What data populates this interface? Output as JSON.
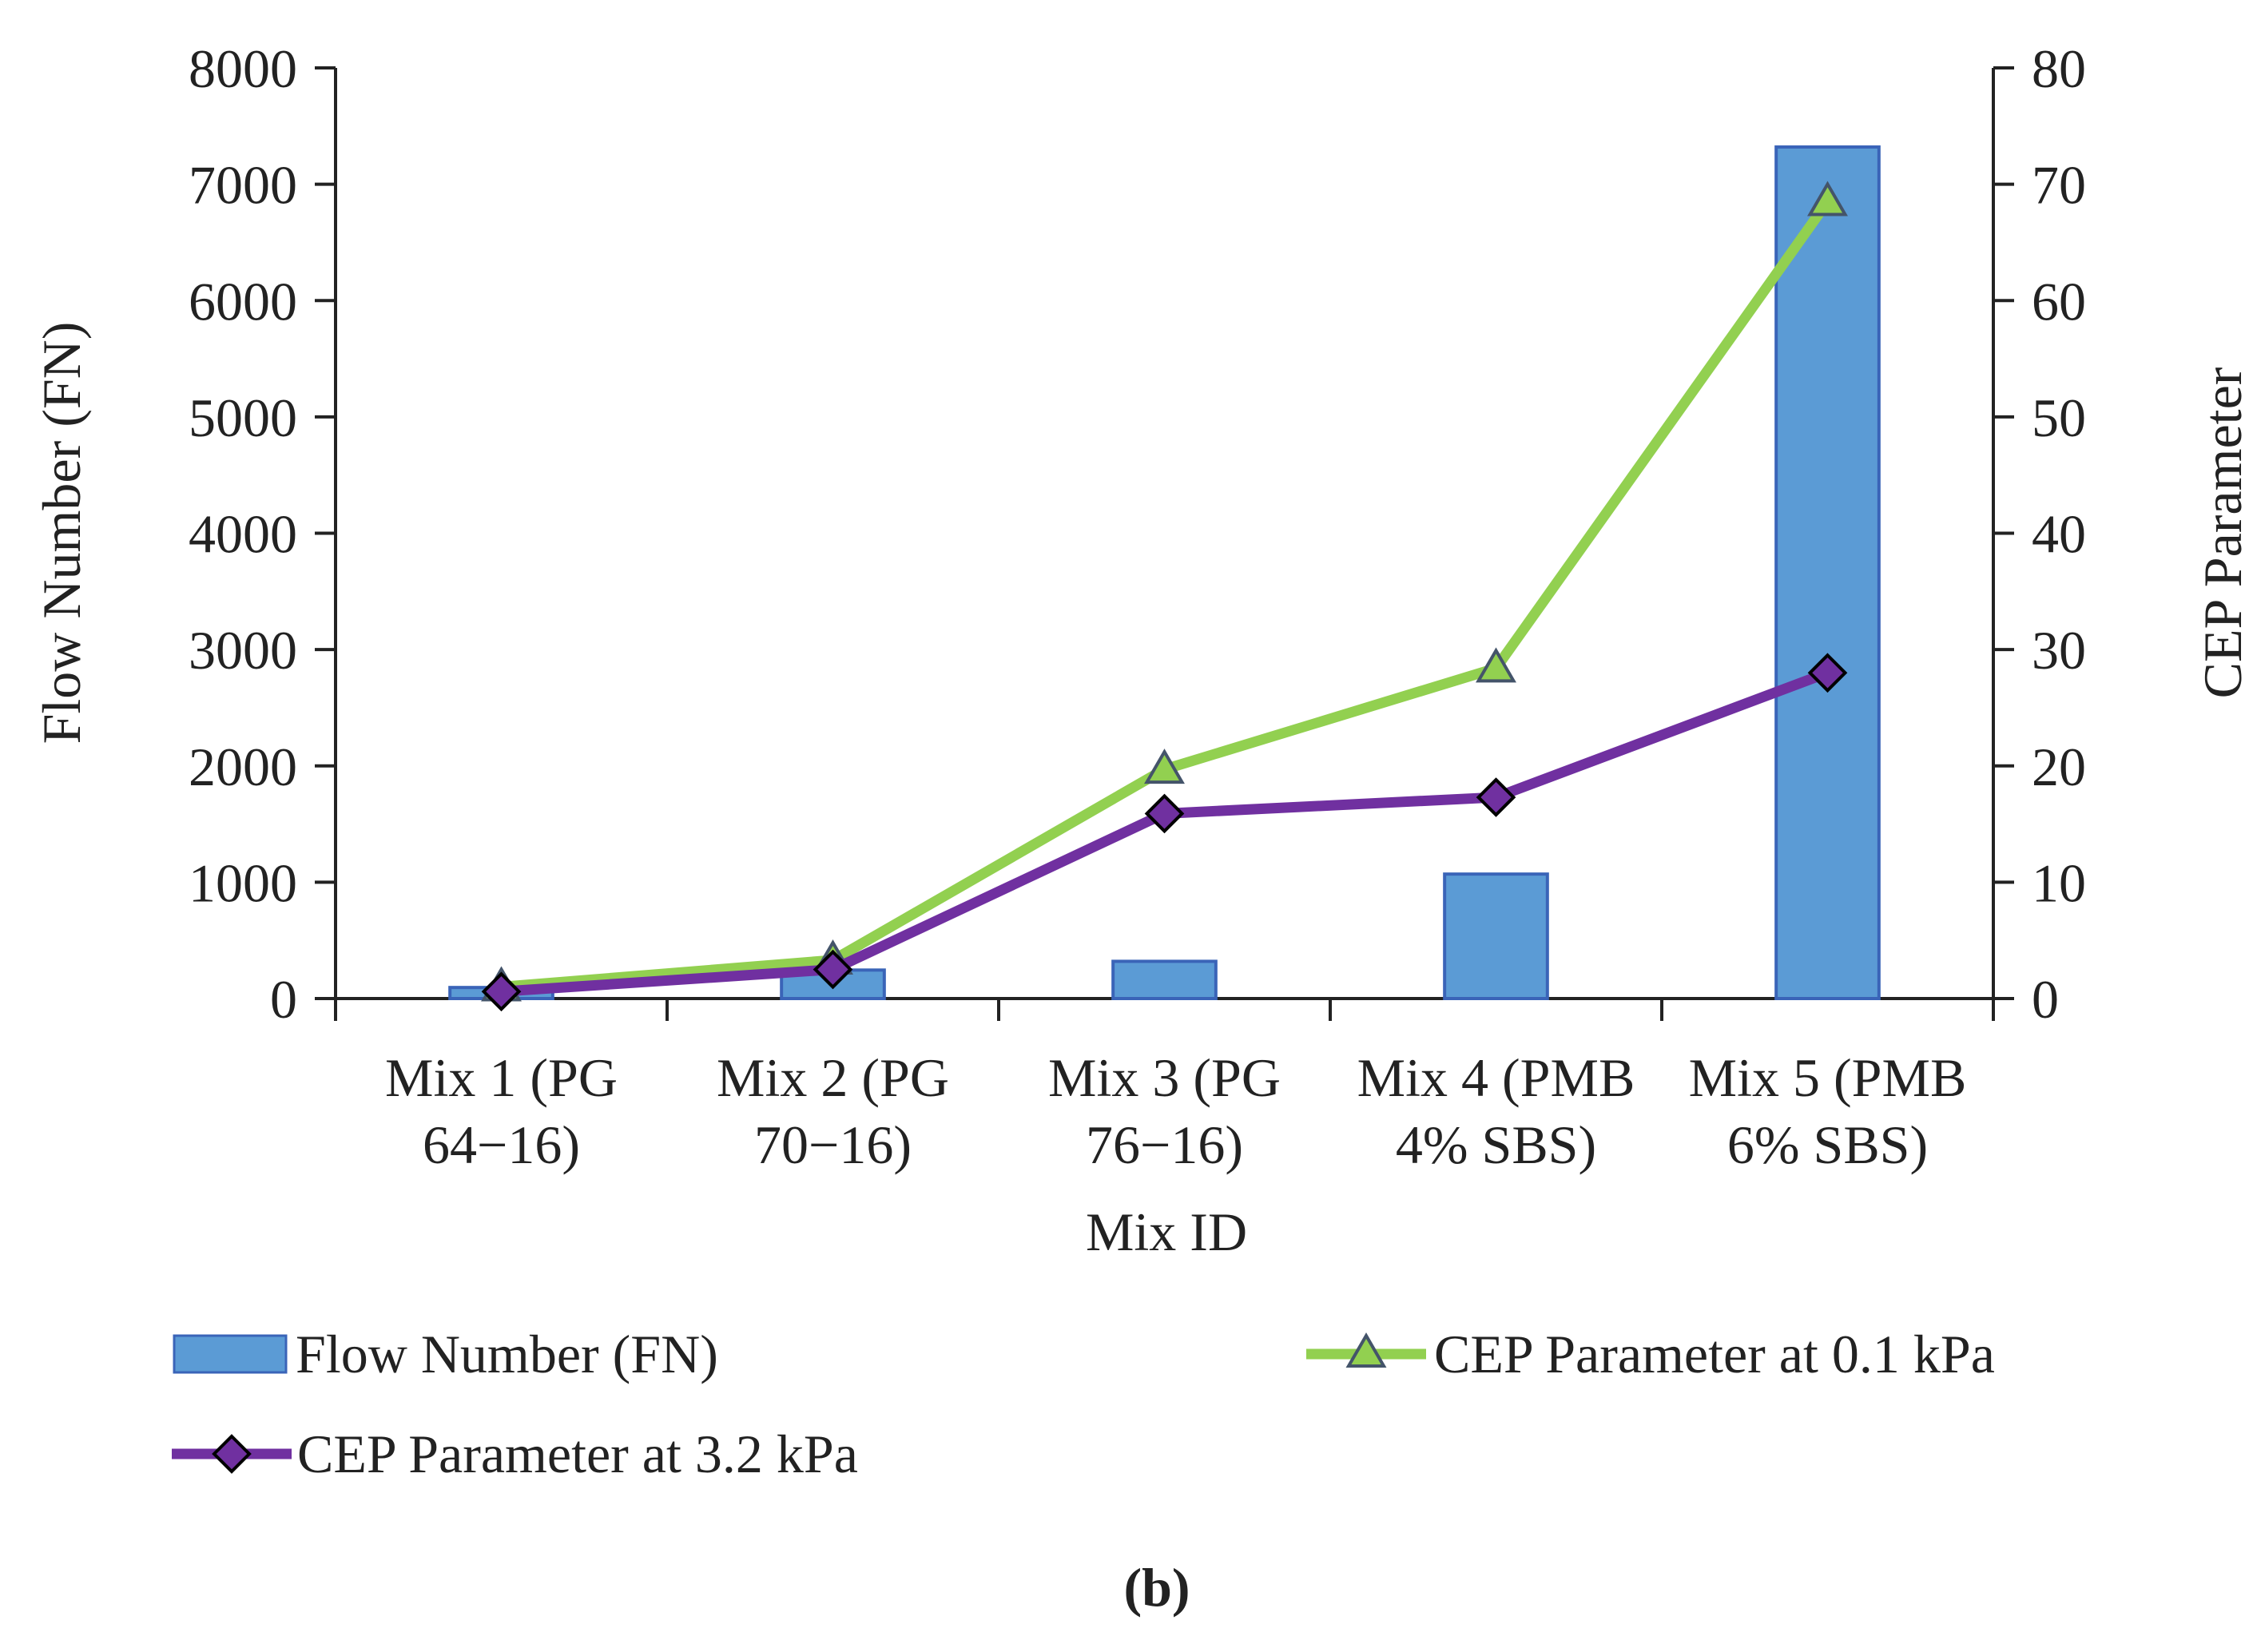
{
  "chart_data": {
    "type": "bar+line",
    "categories": [
      [
        "Mix 1 (PG",
        "64−16)"
      ],
      [
        "Mix 2 (PG",
        "70−16)"
      ],
      [
        "Mix 3 (PG",
        "76−16)"
      ],
      [
        "Mix 4 (PMB",
        "4% SBS)"
      ],
      [
        "Mix 5 (PMB",
        "6% SBS)"
      ]
    ],
    "xlabel": "Mix ID",
    "ylabel_left": "Flow Number (FN)",
    "ylabel_right": "CEP Parameter",
    "ylim_left": [
      0,
      8000
    ],
    "ylim_right": [
      0,
      80
    ],
    "left_ticks": [
      "0",
      "1000",
      "2000",
      "3000",
      "4000",
      "5000",
      "6000",
      "7000",
      "8000"
    ],
    "right_ticks": [
      "0",
      "10",
      "20",
      "30",
      "40",
      "50",
      "60",
      "70",
      "80"
    ],
    "series": [
      {
        "name": "Flow Number (FN)",
        "kind": "bar",
        "axis": "left",
        "color": "#5b9bd5",
        "edge": "#3a64b8",
        "values": [
          95,
          245,
          320,
          1070,
          7320
        ]
      },
      {
        "name": "CEP Parameter at 0.1 kPa",
        "kind": "line",
        "axis": "right",
        "marker": "triangle",
        "color": "#92d050",
        "marker_fill": "#92d050",
        "marker_edge": "#44546a",
        "values": [
          1.0,
          3.3,
          19.7,
          28.4,
          68.5
        ]
      },
      {
        "name": "CEP Parameter at 3.2 kPa",
        "kind": "line",
        "axis": "right",
        "marker": "diamond",
        "color": "#7030a0",
        "marker_fill": "#7030a0",
        "marker_edge": "#000000",
        "values": [
          0.6,
          2.5,
          15.9,
          17.3,
          28.0
        ]
      }
    ],
    "legend": [
      "Flow Number (FN)",
      "CEP Parameter at 0.1 kPa",
      "CEP Parameter at 3.2 kPa"
    ],
    "legend_position": "bottom",
    "caption": "(b)",
    "grid": false
  }
}
